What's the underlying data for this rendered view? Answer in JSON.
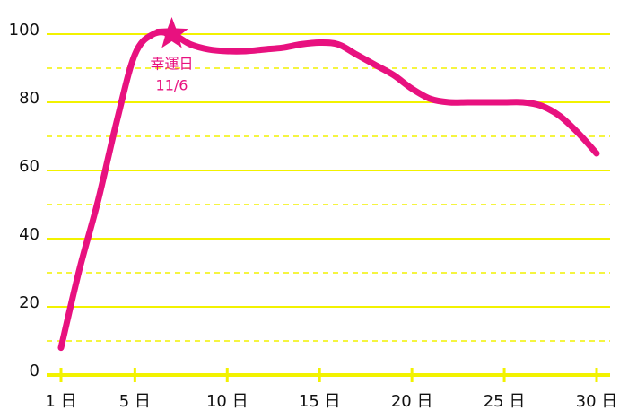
{
  "chart_data": {
    "type": "line",
    "x": [
      1,
      2,
      3,
      4,
      5,
      6,
      7,
      8,
      9,
      10,
      11,
      12,
      13,
      14,
      15,
      16,
      17,
      18,
      19,
      20,
      21,
      22,
      23,
      24,
      25,
      26,
      27,
      28,
      29,
      30
    ],
    "values": [
      8,
      31,
      51,
      74,
      94,
      100,
      100,
      97,
      95.5,
      95,
      95,
      95.5,
      96,
      97,
      97.5,
      97,
      94,
      91,
      88,
      84,
      81,
      80,
      80,
      80,
      80,
      80,
      79,
      76,
      71,
      65
    ],
    "color": "#e8117f",
    "xlim": [
      1,
      30
    ],
    "xticks": [
      {
        "value": 1,
        "label": "1 日"
      },
      {
        "value": 5,
        "label": "5 日"
      },
      {
        "value": 10,
        "label": "10 日"
      },
      {
        "value": 15,
        "label": "15 日"
      },
      {
        "value": 20,
        "label": "20 日"
      },
      {
        "value": 25,
        "label": "25 日"
      },
      {
        "value": 30,
        "label": "30 日"
      }
    ],
    "ylim": [
      0,
      100
    ],
    "yticks": [
      0,
      20,
      40,
      60,
      80,
      100
    ],
    "minor_yticks": [
      10,
      30,
      50,
      70,
      90
    ],
    "grid": true,
    "grid_color": "#f2f200",
    "annotation": {
      "text": "幸運日",
      "date": "11/6",
      "x": 7,
      "y": 100
    }
  }
}
